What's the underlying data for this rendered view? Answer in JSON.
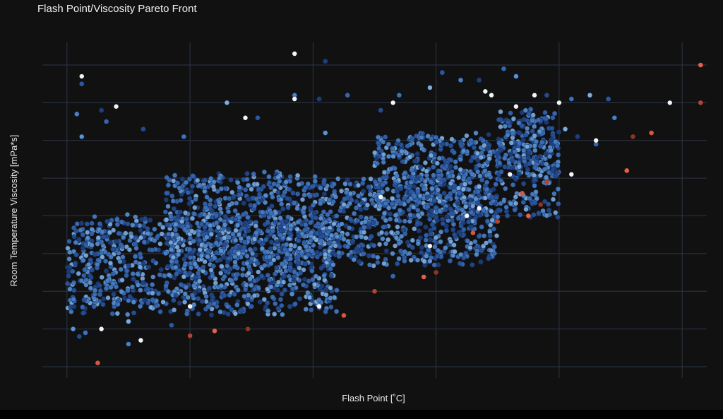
{
  "chart_data": {
    "type": "scatter",
    "title": "Flash Point/Viscosity Pareto Front",
    "xlabel": "Flash Point [˚C]",
    "ylabel": "Room Temperature Viscosity [mPa*s]",
    "xlim": [
      -0.2,
      5.2
    ],
    "ylim": [
      -0.3,
      8.6
    ],
    "x_ticks_shown": false,
    "y_ticks_shown": false,
    "grid": true,
    "legend": "none",
    "series": [
      {
        "role": "bulk",
        "density_bands": [
          {
            "x": [
              0.0,
              2.2
            ],
            "y": [
              1.3,
              4.1
            ]
          },
          {
            "x": [
              0.8,
              3.5
            ],
            "y": [
              2.6,
              5.2
            ]
          },
          {
            "x": [
              2.5,
              4.0
            ],
            "y": [
              3.9,
              6.3
            ]
          },
          {
            "x": [
              3.5,
              4.0
            ],
            "y": [
              5.0,
              6.9
            ]
          }
        ],
        "outliers": [
          [
            0.12,
            7.5
          ],
          [
            0.08,
            6.7
          ],
          [
            0.28,
            6.8
          ],
          [
            0.32,
            6.5
          ],
          [
            0.12,
            6.1
          ],
          [
            0.62,
            6.3
          ],
          [
            0.95,
            6.1
          ],
          [
            1.3,
            7.0
          ],
          [
            1.55,
            6.6
          ],
          [
            1.85,
            7.2
          ],
          [
            2.05,
            7.1
          ],
          [
            2.28,
            7.2
          ],
          [
            2.1,
            6.2
          ],
          [
            2.55,
            6.8
          ],
          [
            2.7,
            7.2
          ],
          [
            2.95,
            7.4
          ],
          [
            3.05,
            7.8
          ],
          [
            3.2,
            7.6
          ],
          [
            3.35,
            7.6
          ],
          [
            3.55,
            7.9
          ],
          [
            3.65,
            7.7
          ],
          [
            3.9,
            7.2
          ],
          [
            4.1,
            7.1
          ],
          [
            4.25,
            7.2
          ],
          [
            4.4,
            7.1
          ],
          [
            4.45,
            6.6
          ],
          [
            4.15,
            6.1
          ],
          [
            4.3,
            5.9
          ],
          [
            0.05,
            1.0
          ],
          [
            0.1,
            0.8
          ],
          [
            0.15,
            0.9
          ],
          [
            0.5,
            1.2
          ],
          [
            0.85,
            1.1
          ],
          [
            0.5,
            0.6
          ],
          [
            2.1,
            8.1
          ],
          [
            2.65,
            2.4
          ],
          [
            2.95,
            2.8
          ],
          [
            3.15,
            3.5
          ],
          [
            3.8,
            4.8
          ],
          [
            4.05,
            6.3
          ]
        ]
      },
      {
        "role": "highlight",
        "points": [
          [
            0.12,
            7.7
          ],
          [
            0.4,
            6.9
          ],
          [
            1.85,
            8.3
          ],
          [
            1.85,
            7.1
          ],
          [
            2.65,
            7.0
          ],
          [
            3.45,
            7.2
          ],
          [
            3.8,
            7.2
          ],
          [
            4.0,
            7.0
          ],
          [
            4.9,
            7.0
          ],
          [
            4.3,
            6.0
          ],
          [
            4.1,
            5.1
          ],
          [
            2.95,
            3.2
          ],
          [
            3.25,
            4.0
          ],
          [
            2.05,
            1.6
          ],
          [
            0.6,
            0.7
          ],
          [
            1.0,
            1.6
          ],
          [
            3.4,
            7.3
          ],
          [
            3.65,
            6.9
          ],
          [
            1.45,
            6.6
          ],
          [
            0.28,
            1.0
          ],
          [
            3.6,
            5.1
          ],
          [
            3.35,
            4.2
          ],
          [
            2.55,
            4.5
          ]
        ]
      },
      {
        "role": "pareto-front",
        "points": [
          [
            0.25,
            0.1
          ],
          [
            1.0,
            0.82
          ],
          [
            1.2,
            0.95
          ],
          [
            1.47,
            1.0
          ],
          [
            2.25,
            1.36
          ],
          [
            2.5,
            2.0
          ],
          [
            2.9,
            2.38
          ],
          [
            3.0,
            2.5
          ],
          [
            3.3,
            3.55
          ],
          [
            3.5,
            3.85
          ],
          [
            3.75,
            4.0
          ],
          [
            3.85,
            4.3
          ],
          [
            3.7,
            4.6
          ],
          [
            3.9,
            4.9
          ],
          [
            4.55,
            5.2
          ],
          [
            4.6,
            6.1
          ],
          [
            4.75,
            6.2
          ],
          [
            5.15,
            7.0
          ],
          [
            5.15,
            8.0
          ]
        ]
      }
    ],
    "colors": {
      "background": "#111111",
      "grid": "#2c3646",
      "bulk_palette": [
        "#1e3f7a",
        "#244b8f",
        "#2a58a3",
        "#3566b2",
        "#3f72bd",
        "#4a80c6",
        "#5b92d0",
        "#7eaede"
      ],
      "highlight": "#f2f4f8",
      "pareto_palette": [
        "#d9553f",
        "#b34433",
        "#e4604a",
        "#8f3427"
      ]
    }
  }
}
